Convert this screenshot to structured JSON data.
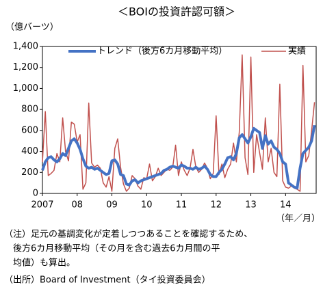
{
  "chart_data": {
    "type": "line",
    "title": "＜BOIの投資許認可額＞",
    "y_label": "（億バーツ）",
    "x_label": "（年／月）",
    "categories": [
      "2007",
      null,
      null,
      null,
      null,
      null,
      null,
      null,
      null,
      null,
      null,
      null,
      "08",
      null,
      null,
      null,
      null,
      null,
      null,
      null,
      null,
      null,
      null,
      null,
      "09",
      null,
      null,
      null,
      null,
      null,
      null,
      null,
      null,
      null,
      null,
      null,
      "10",
      null,
      null,
      null,
      null,
      null,
      null,
      null,
      null,
      null,
      null,
      null,
      "11",
      null,
      null,
      null,
      null,
      null,
      null,
      null,
      null,
      null,
      null,
      null,
      "12",
      null,
      null,
      null,
      null,
      null,
      null,
      null,
      null,
      null,
      null,
      null,
      "13",
      null,
      null,
      null,
      null,
      null,
      null,
      null,
      null,
      null,
      null,
      null,
      "14",
      null,
      null,
      null,
      null,
      null,
      null,
      null,
      null,
      null,
      null
    ],
    "series": [
      {
        "name": "トレンド（後方6カ月移動平均）",
        "color": "#4472c4",
        "width": 4,
        "values": [
          220,
          300,
          340,
          350,
          320,
          300,
          330,
          380,
          360,
          430,
          500,
          520,
          480,
          420,
          330,
          260,
          240,
          250,
          230,
          240,
          220,
          200,
          180,
          190,
          310,
          320,
          280,
          180,
          170,
          90,
          80,
          120,
          130,
          100,
          120,
          130,
          140,
          150,
          160,
          170,
          180,
          190,
          220,
          230,
          250,
          260,
          250,
          240,
          270,
          260,
          240,
          240,
          230,
          250,
          230,
          240,
          260,
          230,
          180,
          160,
          160,
          200,
          230,
          280,
          340,
          350,
          320,
          380,
          530,
          560,
          520,
          480,
          540,
          620,
          600,
          580,
          430,
          550,
          470,
          500,
          440,
          420,
          380,
          300,
          280,
          100,
          80,
          60,
          50,
          240,
          380,
          410,
          440,
          500,
          650
        ]
      },
      {
        "name": "実績",
        "color": "#c0504d",
        "width": 1.5,
        "values": [
          300,
          780,
          170,
          190,
          220,
          380,
          300,
          720,
          400,
          310,
          680,
          660,
          490,
          560,
          40,
          100,
          860,
          290,
          250,
          270,
          240,
          100,
          60,
          160,
          20,
          430,
          520,
          250,
          90,
          20,
          50,
          170,
          140,
          70,
          40,
          150,
          140,
          280,
          120,
          160,
          240,
          170,
          200,
          230,
          220,
          250,
          460,
          170,
          300,
          220,
          170,
          240,
          420,
          250,
          200,
          230,
          290,
          240,
          140,
          190,
          740,
          180,
          280,
          150,
          230,
          280,
          480,
          300,
          580,
          1320,
          340,
          180,
          1300,
          200,
          560,
          390,
          230,
          720,
          300,
          430,
          200,
          160,
          1040,
          120,
          60,
          50,
          70,
          50,
          40,
          20,
          1220,
          300,
          360,
          600,
          870
        ]
      }
    ],
    "ylim": [
      0,
      1400
    ],
    "yticks": [
      0,
      200,
      400,
      600,
      800,
      {
        "value": 1000,
        "label": "1,000"
      },
      {
        "value": 1200,
        "label": "1,200"
      },
      {
        "value": 1400,
        "label": "1,400"
      }
    ],
    "legend": "top",
    "notes": [
      "（注）足元の基調変化が定着しつつあることを確認するため、",
      "　後方6カ月移動平均（その月を含む過去6カ月間の平",
      "　均値）も算出。",
      "（出所）Board of Investment（タイ投資委員会）"
    ]
  }
}
